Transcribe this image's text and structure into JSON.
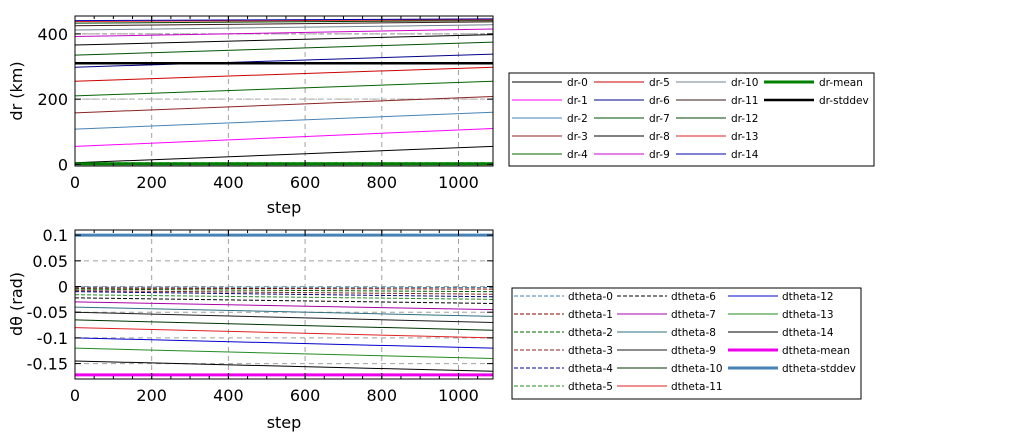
{
  "chart_data": [
    {
      "type": "line",
      "xlabel": "step",
      "ylabel": "dr (km)",
      "xlim": [
        0,
        1090
      ],
      "ylim": [
        -5,
        455
      ],
      "xticks": [
        "0",
        "200",
        "400",
        "600",
        "800",
        "1000"
      ],
      "yticks": [
        "0",
        "200",
        "400"
      ],
      "grid": true,
      "legend_position": "right",
      "series": [
        {
          "name": "dr-0",
          "color": "#000000",
          "width": 1,
          "dash": "",
          "y0": 5,
          "y1": 55
        },
        {
          "name": "dr-1",
          "color": "#ff00ff",
          "width": 1,
          "dash": "",
          "y0": 55,
          "y1": 110
        },
        {
          "name": "dr-2",
          "color": "#4682b4",
          "width": 1,
          "dash": "",
          "y0": 108,
          "y1": 160
        },
        {
          "name": "dr-3",
          "color": "#8b2222",
          "width": 1,
          "dash": "",
          "y0": 158,
          "y1": 208
        },
        {
          "name": "dr-4",
          "color": "#006400",
          "width": 1,
          "dash": "",
          "y0": 210,
          "y1": 255
        },
        {
          "name": "dr-5",
          "color": "#cc0000",
          "width": 1,
          "dash": "",
          "y0": 255,
          "y1": 298
        },
        {
          "name": "dr-6",
          "color": "#00008b",
          "width": 1,
          "dash": "",
          "y0": 298,
          "y1": 338
        },
        {
          "name": "dr-7",
          "color": "#005000",
          "width": 1,
          "dash": "",
          "y0": 335,
          "y1": 375
        },
        {
          "name": "dr-8",
          "color": "#000000",
          "width": 1,
          "dash": "",
          "y0": 366,
          "y1": 398
        },
        {
          "name": "dr-9",
          "color": "#cc00cc",
          "width": 1,
          "dash": "",
          "y0": 392,
          "y1": 415
        },
        {
          "name": "dr-10",
          "color": "#708090",
          "width": 1,
          "dash": "",
          "y0": 412,
          "y1": 428
        },
        {
          "name": "dr-11",
          "color": "#3a1a1a",
          "width": 1,
          "dash": "",
          "y0": 425,
          "y1": 437
        },
        {
          "name": "dr-12",
          "color": "#004400",
          "width": 1,
          "dash": "",
          "y0": 433,
          "y1": 441
        },
        {
          "name": "dr-13",
          "color": "#dd2222",
          "width": 1,
          "dash": "",
          "y0": 438,
          "y1": 444
        },
        {
          "name": "dr-14",
          "color": "#0000aa",
          "width": 1,
          "dash": "",
          "y0": 441,
          "y1": 446
        },
        {
          "name": "dr-mean",
          "color": "#008000",
          "width": 3,
          "dash": "",
          "y0": 2,
          "y1": 2
        },
        {
          "name": "dr-stddev",
          "color": "#000000",
          "width": 2.5,
          "dash": "",
          "y0": 310,
          "y1": 310
        }
      ],
      "reference_lines": [
        {
          "y": 400,
          "color": "#999999",
          "dash": "4,3"
        },
        {
          "y": 200,
          "color": "#bbbbbb",
          "dash": "4,3"
        },
        {
          "y": 5,
          "color": "#44aa44",
          "dash": "4,3"
        }
      ]
    },
    {
      "type": "line",
      "xlabel": "step",
      "ylabel": "dθ (rad)",
      "xlim": [
        0,
        1090
      ],
      "ylim": [
        -0.18,
        0.11
      ],
      "xticks": [
        "0",
        "200",
        "400",
        "600",
        "800",
        "1000"
      ],
      "yticks": [
        "0.1",
        "0.05",
        "0",
        "-0.05",
        "-0.1",
        "-0.15"
      ],
      "grid": true,
      "legend_position": "right",
      "series": [
        {
          "name": "dtheta-0",
          "color": "#4682b4",
          "width": 1,
          "dash": "4,2",
          "y0": -0.001,
          "y1": -0.002
        },
        {
          "name": "dtheta-1",
          "color": "#8b0000",
          "width": 1,
          "dash": "4,2",
          "y0": -0.003,
          "y1": -0.005
        },
        {
          "name": "dtheta-2",
          "color": "#006400",
          "width": 1,
          "dash": "4,2",
          "y0": -0.005,
          "y1": -0.01
        },
        {
          "name": "dtheta-3",
          "color": "#8b2222",
          "width": 1,
          "dash": "4,2",
          "y0": -0.008,
          "y1": -0.015
        },
        {
          "name": "dtheta-4",
          "color": "#00008b",
          "width": 1,
          "dash": "4,2",
          "y0": -0.01,
          "y1": -0.02
        },
        {
          "name": "dtheta-5",
          "color": "#228b22",
          "width": 1,
          "dash": "4,2",
          "y0": -0.016,
          "y1": -0.025
        },
        {
          "name": "dtheta-6",
          "color": "#000000",
          "width": 1,
          "dash": "4,2",
          "y0": -0.022,
          "y1": -0.033
        },
        {
          "name": "dtheta-7",
          "color": "#aa00aa",
          "width": 1,
          "dash": "",
          "y0": -0.03,
          "y1": -0.045
        },
        {
          "name": "dtheta-8",
          "color": "#2f6f7f",
          "width": 1,
          "dash": "",
          "y0": -0.04,
          "y1": -0.058
        },
        {
          "name": "dtheta-9",
          "color": "#1a1a1a",
          "width": 1,
          "dash": "",
          "y0": -0.05,
          "y1": -0.07
        },
        {
          "name": "dtheta-10",
          "color": "#003300",
          "width": 1,
          "dash": "",
          "y0": -0.065,
          "y1": -0.085
        },
        {
          "name": "dtheta-11",
          "color": "#dd2222",
          "width": 1,
          "dash": "",
          "y0": -0.08,
          "y1": -0.1
        },
        {
          "name": "dtheta-12",
          "color": "#0000cc",
          "width": 1,
          "dash": "",
          "y0": -0.1,
          "y1": -0.12
        },
        {
          "name": "dtheta-13",
          "color": "#228b22",
          "width": 1,
          "dash": "",
          "y0": -0.12,
          "y1": -0.14
        },
        {
          "name": "dtheta-14",
          "color": "#000000",
          "width": 1,
          "dash": "",
          "y0": -0.145,
          "y1": -0.165
        },
        {
          "name": "dtheta-mean",
          "color": "#ee00ee",
          "width": 3,
          "dash": "",
          "y0": -0.172,
          "y1": -0.172
        },
        {
          "name": "dtheta-stddev",
          "color": "#4682b4",
          "width": 3,
          "dash": "",
          "y0": 0.1,
          "y1": 0.1
        }
      ],
      "reference_lines": []
    }
  ]
}
